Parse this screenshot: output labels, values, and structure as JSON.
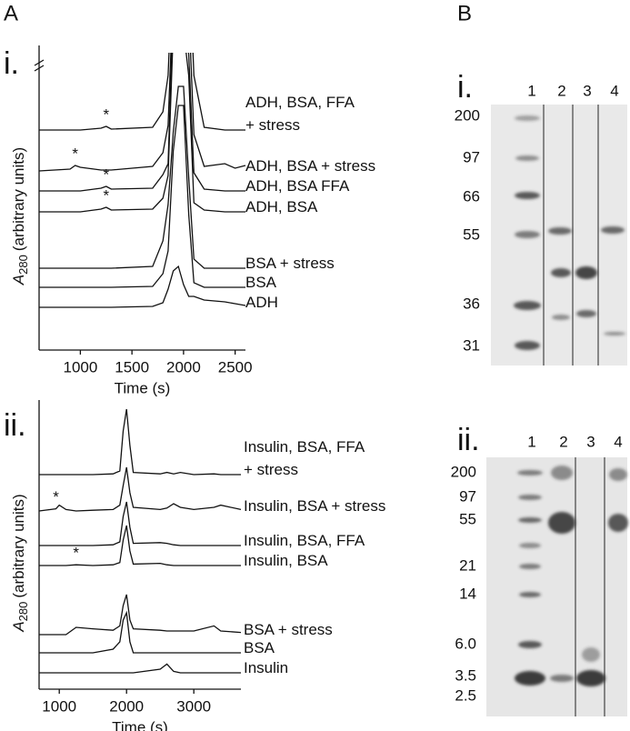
{
  "panels": {
    "A": "A",
    "B": "B",
    "Ai": "i.",
    "Aii": "ii.",
    "Bi": "i.",
    "Bii": "ii."
  },
  "chart_data": [
    {
      "type": "line",
      "xlabel": "Time (s)",
      "ylabel": {
        "symbol": "A",
        "subscript": "280",
        "text": "(arbitrary units)"
      },
      "xlim": [
        600,
        2600
      ],
      "xticks": [
        1000,
        1500,
        2000,
        2500
      ],
      "x": [
        600,
        900,
        950,
        1000,
        1200,
        1250,
        1300,
        1700,
        1800,
        1850,
        1900,
        1950,
        2000,
        2050,
        2100,
        2200,
        2400,
        2500,
        2600
      ],
      "series": [
        {
          "name": "ADH, BSA, FFA\n+ stress",
          "color": "#111111",
          "values": [
            0,
            0,
            0,
            0,
            2,
            4,
            1,
            3,
            20,
            60,
            200,
            200,
            220,
            200,
            60,
            3,
            0,
            0,
            0
          ]
        },
        {
          "name": "ADH, BSA + stress",
          "color": "#111111",
          "values": [
            0,
            2,
            6,
            4,
            1,
            1,
            1,
            5,
            20,
            50,
            200,
            200,
            200,
            180,
            40,
            5,
            8,
            3,
            6
          ]
        },
        {
          "name": "ADH, BSA FFA",
          "color": "#111111",
          "values": [
            0,
            0,
            0,
            0,
            3,
            5,
            2,
            3,
            18,
            30,
            200,
            200,
            200,
            150,
            20,
            2,
            0,
            0,
            0
          ]
        },
        {
          "name": "ADH, BSA",
          "color": "#111111",
          "values": [
            0,
            0,
            0,
            0,
            3,
            5,
            2,
            3,
            15,
            40,
            200,
            200,
            200,
            150,
            10,
            2,
            0,
            0,
            0
          ]
        },
        {
          "name": "BSA + stress",
          "color": "#111111",
          "values": [
            0,
            0,
            0,
            0,
            0,
            0,
            0,
            2,
            30,
            70,
            150,
            200,
            200,
            100,
            10,
            0,
            0,
            0,
            0
          ]
        },
        {
          "name": "BSA",
          "color": "#111111",
          "values": [
            0,
            0,
            0,
            0,
            0,
            0,
            0,
            1,
            15,
            40,
            150,
            200,
            200,
            80,
            5,
            0,
            0,
            0,
            0
          ]
        },
        {
          "name": "ADH",
          "color": "#111111",
          "values": [
            0,
            0,
            0,
            0,
            0,
            0,
            0,
            1,
            5,
            20,
            40,
            45,
            25,
            12,
            12,
            8,
            6,
            4,
            2
          ]
        }
      ],
      "annotations": [
        {
          "text": "*",
          "series": 0,
          "x": 1250
        },
        {
          "text": "*",
          "series": 1,
          "x": 950
        },
        {
          "text": "*",
          "series": 2,
          "x": 1250
        },
        {
          "text": "*",
          "series": 3,
          "x": 1250
        }
      ]
    },
    {
      "type": "line",
      "xlabel": "Time (s)",
      "ylabel": {
        "symbol": "A",
        "subscript": "280",
        "text": "(arbitrary units)"
      },
      "xlim": [
        700,
        3700
      ],
      "xticks": [
        1000,
        2000,
        3000
      ],
      "x": [
        700,
        950,
        1000,
        1100,
        1250,
        1500,
        1800,
        1900,
        1950,
        2000,
        2050,
        2100,
        2500,
        2600,
        2700,
        2800,
        3000,
        3300,
        3400,
        3700
      ],
      "series": [
        {
          "name": "Insulin, BSA, FFA\n+ stress",
          "color": "#111111",
          "values": [
            0,
            0,
            0,
            0,
            0,
            0,
            1,
            5,
            60,
            90,
            40,
            3,
            1,
            3,
            1,
            3,
            0,
            1,
            0,
            0
          ]
        },
        {
          "name": "Insulin, BSA + stress",
          "color": "#111111",
          "values": [
            0,
            3,
            8,
            2,
            0,
            1,
            2,
            8,
            35,
            60,
            25,
            5,
            2,
            4,
            10,
            5,
            2,
            5,
            8,
            2
          ]
        },
        {
          "name": "Insulin, BSA, FFA",
          "color": "#111111",
          "values": [
            0,
            0,
            0,
            0,
            0,
            0,
            1,
            5,
            40,
            60,
            25,
            3,
            4,
            3,
            1,
            0,
            0,
            0,
            0,
            0
          ]
        },
        {
          "name": "Insulin, BSA",
          "color": "#111111",
          "values": [
            0,
            0,
            0,
            0,
            1,
            0,
            1,
            4,
            35,
            55,
            20,
            2,
            3,
            1,
            0,
            0,
            0,
            0,
            0,
            0
          ]
        },
        {
          "name": "BSA + stress",
          "color": "#111111",
          "values": [
            0,
            0,
            0,
            0,
            10,
            8,
            6,
            12,
            40,
            55,
            20,
            8,
            6,
            5,
            5,
            5,
            5,
            12,
            5,
            3
          ]
        },
        {
          "name": "BSA",
          "color": "#111111",
          "values": [
            0,
            0,
            0,
            0,
            0,
            0,
            5,
            15,
            45,
            55,
            15,
            0,
            0,
            0,
            0,
            0,
            0,
            0,
            0,
            0
          ]
        },
        {
          "name": "Insulin",
          "color": "#111111",
          "values": [
            0,
            0,
            0,
            0,
            0,
            0,
            0,
            0,
            0,
            0,
            0,
            0,
            5,
            12,
            2,
            0,
            0,
            0,
            0,
            0
          ]
        }
      ],
      "annotations": [
        {
          "text": "*",
          "series": 1,
          "x": 950
        },
        {
          "text": "*",
          "series": 3,
          "x": 1250
        }
      ]
    }
  ],
  "gels": [
    {
      "lanes": [
        "1",
        "2",
        "3",
        "4"
      ],
      "markers": [
        "200",
        "97",
        "66",
        "55",
        "36",
        "31"
      ]
    },
    {
      "lanes": [
        "1",
        "2",
        "3",
        "4"
      ],
      "markers": [
        "200",
        "97",
        "55",
        "21",
        "14",
        "6.0",
        "3.5",
        "2.5"
      ]
    }
  ]
}
